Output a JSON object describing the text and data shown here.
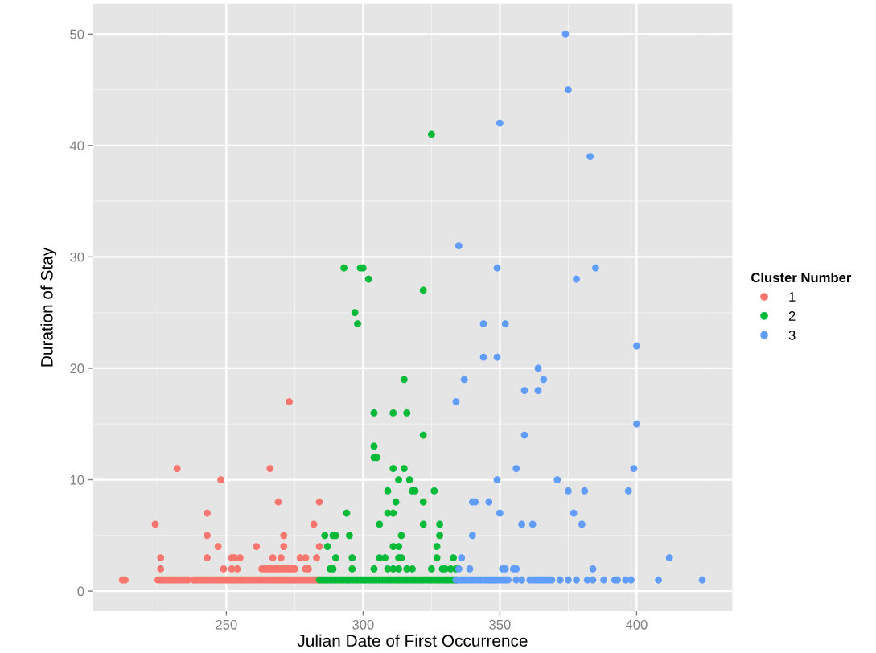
{
  "chart_data": {
    "type": "scatter",
    "xlabel": "Julian Date of First Occurrence",
    "ylabel": "Duration of Stay",
    "legend_title": "Cluster Number",
    "legend": "right",
    "grid": true,
    "marker": "circle",
    "xlim": [
      201.2,
      435
    ],
    "ylim": [
      -1.8,
      52.7
    ],
    "xticks": [
      250,
      300,
      350,
      400
    ],
    "yticks": [
      0,
      10,
      20,
      30,
      40,
      50
    ],
    "series": [
      {
        "name": "1",
        "color": "#f8766d",
        "x": [
          212,
          213,
          225,
          226,
          227,
          228,
          229,
          230,
          231,
          232,
          233,
          234,
          235,
          236,
          238,
          239,
          240,
          241,
          242,
          243,
          244,
          245,
          246,
          247,
          248,
          249,
          250,
          251,
          252,
          253,
          254,
          255,
          256,
          257,
          258,
          259,
          260,
          261,
          262,
          263,
          264,
          265,
          266,
          267,
          268,
          269,
          270,
          271,
          272,
          273,
          274,
          275,
          276,
          277,
          278,
          279,
          280,
          281,
          282,
          283,
          284,
          224,
          226,
          226,
          232,
          243,
          243,
          243,
          247,
          248,
          249,
          252,
          253,
          255,
          252,
          254,
          261,
          266,
          267,
          269,
          270,
          271,
          271,
          263,
          264,
          265,
          266,
          267,
          268,
          269,
          270,
          271,
          272,
          273,
          274,
          275,
          273,
          277,
          279,
          279,
          280,
          282,
          283,
          284,
          284
        ],
        "values": [
          1,
          1,
          1,
          1,
          1,
          1,
          1,
          1,
          1,
          1,
          1,
          1,
          1,
          1,
          1,
          1,
          1,
          1,
          1,
          1,
          1,
          1,
          1,
          1,
          1,
          1,
          1,
          1,
          1,
          1,
          1,
          1,
          1,
          1,
          1,
          1,
          1,
          1,
          1,
          1,
          1,
          1,
          1,
          1,
          1,
          1,
          1,
          1,
          1,
          1,
          1,
          1,
          1,
          1,
          1,
          1,
          1,
          1,
          1,
          1,
          1,
          6,
          3,
          2,
          11,
          7,
          5,
          3,
          4,
          10,
          2,
          3,
          3,
          3,
          2,
          2,
          4,
          11,
          3,
          8,
          3,
          5,
          4,
          2,
          2,
          2,
          2,
          2,
          2,
          2,
          2,
          2,
          2,
          2,
          2,
          2,
          17,
          3,
          3,
          2,
          2,
          6,
          3,
          8,
          4
        ]
      },
      {
        "name": "2",
        "color": "#00ba38",
        "x": [
          284,
          285,
          286,
          287,
          288,
          289,
          290,
          291,
          292,
          293,
          294,
          295,
          296,
          297,
          298,
          299,
          300,
          301,
          302,
          303,
          304,
          305,
          306,
          307,
          308,
          309,
          310,
          311,
          312,
          313,
          314,
          315,
          316,
          317,
          318,
          319,
          320,
          321,
          322,
          323,
          324,
          325,
          326,
          327,
          328,
          329,
          330,
          331,
          332,
          333,
          334,
          286,
          287,
          288,
          289,
          289,
          290,
          290,
          293,
          294,
          295,
          296,
          296,
          297,
          298,
          299,
          300,
          302,
          304,
          304,
          304,
          304,
          305,
          306,
          306,
          308,
          309,
          309,
          309,
          311,
          311,
          311,
          311,
          311,
          312,
          313,
          313,
          313,
          313,
          314,
          314,
          315,
          315,
          316,
          316,
          317,
          318,
          318,
          319,
          322,
          322,
          322,
          322,
          325,
          325,
          326,
          327,
          327,
          328,
          328,
          329,
          330,
          332,
          333,
          334
        ],
        "values": [
          1,
          1,
          1,
          1,
          1,
          1,
          1,
          1,
          1,
          1,
          1,
          1,
          1,
          1,
          1,
          1,
          1,
          1,
          1,
          1,
          1,
          1,
          1,
          1,
          1,
          1,
          1,
          1,
          1,
          1,
          1,
          1,
          1,
          1,
          1,
          1,
          1,
          1,
          1,
          1,
          1,
          1,
          1,
          1,
          1,
          1,
          1,
          1,
          1,
          1,
          1,
          5,
          4,
          2,
          2,
          5,
          5,
          3,
          29,
          7,
          5,
          3,
          2,
          25,
          24,
          29,
          29,
          28,
          12,
          2,
          16,
          13,
          12,
          6,
          3,
          3,
          9,
          7,
          2,
          7,
          4,
          2,
          11,
          16,
          8,
          10,
          4,
          3,
          2,
          3,
          5,
          11,
          19,
          16,
          2,
          10,
          9,
          2,
          9,
          27,
          14,
          8,
          6,
          41,
          2,
          9,
          4,
          3,
          6,
          5,
          2,
          2,
          2,
          3,
          2
        ]
      },
      {
        "name": "3",
        "color": "#619cff",
        "x": [
          334,
          335,
          336,
          337,
          338,
          339,
          340,
          341,
          342,
          343,
          344,
          345,
          346,
          347,
          348,
          349,
          350,
          351,
          352,
          353,
          356,
          358,
          361,
          362,
          363,
          364,
          365,
          366,
          367,
          368,
          369,
          372,
          375,
          378,
          382,
          384,
          388,
          392,
          393,
          396,
          398,
          408,
          424,
          336,
          335,
          339,
          340,
          340,
          341,
          346,
          349,
          350,
          351,
          352,
          355,
          356,
          356,
          358,
          362,
          371,
          375,
          381,
          377,
          380,
          384,
          397,
          399,
          412,
          374,
          375,
          350,
          383,
          335,
          349,
          385,
          378,
          344,
          352,
          400,
          344,
          349,
          364,
          337,
          366,
          359,
          364,
          334,
          400,
          359
        ],
        "values": [
          1,
          1,
          1,
          1,
          1,
          1,
          1,
          1,
          1,
          1,
          1,
          1,
          1,
          1,
          1,
          1,
          1,
          1,
          1,
          1,
          1,
          1,
          1,
          1,
          1,
          1,
          1,
          1,
          1,
          1,
          1,
          1,
          1,
          1,
          1,
          1,
          1,
          1,
          1,
          1,
          1,
          1,
          1,
          3,
          2,
          2,
          5,
          8,
          8,
          8,
          10,
          7,
          2,
          2,
          2,
          2,
          11,
          6,
          6,
          10,
          9,
          9,
          7,
          6,
          2,
          9,
          11,
          3,
          50,
          45,
          42,
          39,
          31,
          29,
          29,
          28,
          24,
          24,
          22,
          21,
          21,
          20,
          19,
          19,
          18,
          18,
          17,
          15,
          14
        ]
      }
    ]
  }
}
